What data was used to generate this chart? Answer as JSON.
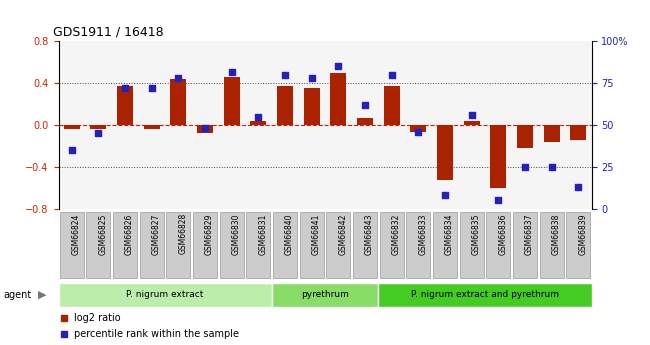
{
  "title": "GDS1911 / 16418",
  "samples": [
    "GSM66824",
    "GSM66825",
    "GSM66826",
    "GSM66827",
    "GSM66828",
    "GSM66829",
    "GSM66830",
    "GSM66831",
    "GSM66840",
    "GSM66841",
    "GSM66842",
    "GSM66843",
    "GSM66832",
    "GSM66833",
    "GSM66834",
    "GSM66835",
    "GSM66836",
    "GSM66837",
    "GSM66838",
    "GSM66839"
  ],
  "log2_ratio": [
    -0.04,
    -0.04,
    0.37,
    -0.04,
    0.44,
    -0.08,
    0.46,
    0.04,
    0.37,
    0.35,
    0.5,
    0.07,
    0.37,
    -0.07,
    -0.53,
    0.04,
    -0.6,
    -0.22,
    -0.16,
    -0.14
  ],
  "percentile": [
    35,
    45,
    72,
    72,
    78,
    48,
    82,
    55,
    80,
    78,
    85,
    62,
    80,
    46,
    8,
    56,
    5,
    25,
    25,
    13
  ],
  "groups": [
    {
      "label": "P. nigrum extract",
      "start": 0,
      "end": 8,
      "color": "#bbeeaa"
    },
    {
      "label": "pyrethrum",
      "start": 8,
      "end": 12,
      "color": "#88dd66"
    },
    {
      "label": "P. nigrum extract and pyrethrum",
      "start": 12,
      "end": 20,
      "color": "#44cc22"
    }
  ],
  "bar_color": "#aa2200",
  "dot_color": "#2222bb",
  "ylim_left": [
    -0.8,
    0.8
  ],
  "ylim_right": [
    0,
    100
  ],
  "yticks_left": [
    -0.8,
    -0.4,
    0.0,
    0.4,
    0.8
  ],
  "yticks_right": [
    0,
    25,
    50,
    75,
    100
  ],
  "ytick_labels_right": [
    "0",
    "25",
    "50",
    "75",
    "100%"
  ],
  "hlines_dotted": [
    0.4,
    -0.4
  ],
  "hline_zero_color": "#cc2200",
  "agent_label": "agent",
  "legend_bar_label": "log2 ratio",
  "legend_dot_label": "percentile rank within the sample",
  "tick_label_color_left": "#cc2200",
  "tick_label_color_right": "#2222bb",
  "dotted_line_color": "#444444",
  "sample_box_color": "#cccccc",
  "sample_box_edge": "#999999",
  "axis_bg": "#ffffff",
  "chart_bg": "#f5f5f5"
}
